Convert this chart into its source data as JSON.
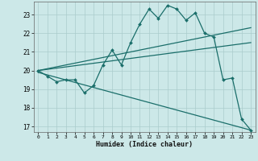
{
  "xlabel": "Humidex (Indice chaleur)",
  "bg_color": "#cce8e8",
  "grid_color": "#aacccc",
  "line_color": "#1a6e6a",
  "xlim": [
    -0.5,
    23.5
  ],
  "ylim": [
    16.7,
    23.7
  ],
  "yticks": [
    17,
    18,
    19,
    20,
    21,
    22,
    23
  ],
  "xticks": [
    0,
    1,
    2,
    3,
    4,
    5,
    6,
    7,
    8,
    9,
    10,
    11,
    12,
    13,
    14,
    15,
    16,
    17,
    18,
    19,
    20,
    21,
    22,
    23
  ],
  "main_x": [
    0,
    1,
    2,
    3,
    4,
    5,
    6,
    7,
    8,
    9,
    10,
    11,
    12,
    13,
    14,
    15,
    16,
    17,
    18,
    19,
    20,
    21,
    22,
    23
  ],
  "main_y": [
    20.0,
    19.7,
    19.4,
    19.5,
    19.5,
    18.8,
    19.2,
    20.3,
    21.1,
    20.3,
    21.5,
    22.5,
    23.3,
    22.8,
    23.5,
    23.3,
    22.7,
    23.1,
    22.0,
    21.8,
    19.5,
    19.6,
    17.4,
    16.8
  ],
  "upper_line_x": [
    0,
    23
  ],
  "upper_line_y": [
    20.0,
    22.3
  ],
  "lower_line_x": [
    0,
    23
  ],
  "lower_line_y": [
    19.9,
    16.8
  ],
  "mid_line_x": [
    0,
    23
  ],
  "mid_line_y": [
    20.0,
    21.5
  ]
}
